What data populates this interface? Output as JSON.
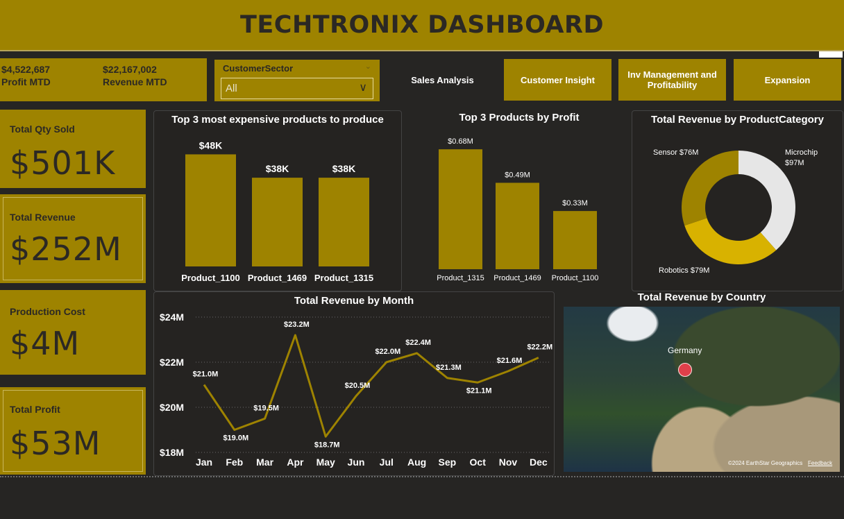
{
  "header": {
    "title": "TECHTRONIX DASHBOARD"
  },
  "kpi_strip": {
    "profit_value": "$4,522,687",
    "profit_label": "Profit MTD",
    "revenue_value": "$22,167,002",
    "revenue_label": "Revenue MTD"
  },
  "slicer": {
    "title": "CustomerSector",
    "value": "All"
  },
  "nav": {
    "sales": "Sales Analysis",
    "customer": "Customer Insight",
    "inv": "Inv Management and Profitability",
    "expansion": "Expansion"
  },
  "cards": [
    {
      "label": "Total Qty Sold",
      "value": "$501K"
    },
    {
      "label": "Total Revenue",
      "value": "$252M"
    },
    {
      "label": "Production Cost",
      "value": "$4M"
    },
    {
      "label": "Total Profit",
      "value": "$53M"
    }
  ],
  "colors": {
    "gold": "#9e8300",
    "bright_gold": "#d8b200",
    "light_grey": "#e6e6e6",
    "panel": "#252321",
    "marker": "#e0404a"
  },
  "map": {
    "title": "Total Revenue by Country",
    "marker_label": "Germany",
    "attribution": "©2024 EarthStar Geographics",
    "feedback": "Feedback"
  },
  "chart_data": [
    {
      "type": "bar",
      "title": "Top 3 most expensive products to produce",
      "categories": [
        "Product_1100",
        "Product_1469",
        "Product_1315"
      ],
      "values": [
        48,
        38,
        38
      ],
      "value_labels": [
        "$48K",
        "$38K",
        "$38K"
      ],
      "unit": "K",
      "ylim": [
        0,
        52
      ]
    },
    {
      "type": "bar",
      "title": "Top 3 Products by Profit",
      "categories": [
        "Product_1315",
        "Product_1469",
        "Product_1100"
      ],
      "values": [
        0.68,
        0.49,
        0.33
      ],
      "value_labels": [
        "$0.68M",
        "$0.49M",
        "$0.33M"
      ],
      "ylim": [
        0,
        0.72
      ]
    },
    {
      "type": "pie",
      "title": "Total Revenue by ProductCategory",
      "categories": [
        "Microchip",
        "Robotics",
        "Sensor"
      ],
      "values": [
        97,
        79,
        76
      ],
      "labels": [
        "Microchip $97M",
        "Robotics $79M",
        "Sensor $76M"
      ]
    },
    {
      "type": "line",
      "title": "Total Revenue by Month",
      "x": [
        "Jan",
        "Feb",
        "Mar",
        "Apr",
        "May",
        "Jun",
        "Jul",
        "Aug",
        "Sep",
        "Oct",
        "Nov",
        "Dec"
      ],
      "values": [
        21.0,
        19.0,
        19.5,
        23.2,
        18.7,
        20.5,
        22.0,
        22.4,
        21.3,
        21.1,
        21.6,
        22.2
      ],
      "value_labels": [
        "$21.0M",
        "$19.0M",
        "$19.5M",
        "$23.2M",
        "$18.7M",
        "$20.5M",
        "$22.0M",
        "$22.4M",
        "$21.3M",
        "$21.1M",
        "$21.6M",
        "$22.2M"
      ],
      "yticks": [
        "$18M",
        "$20M",
        "$22M",
        "$24M"
      ],
      "ylim": [
        18,
        24
      ],
      "grid": true
    }
  ]
}
